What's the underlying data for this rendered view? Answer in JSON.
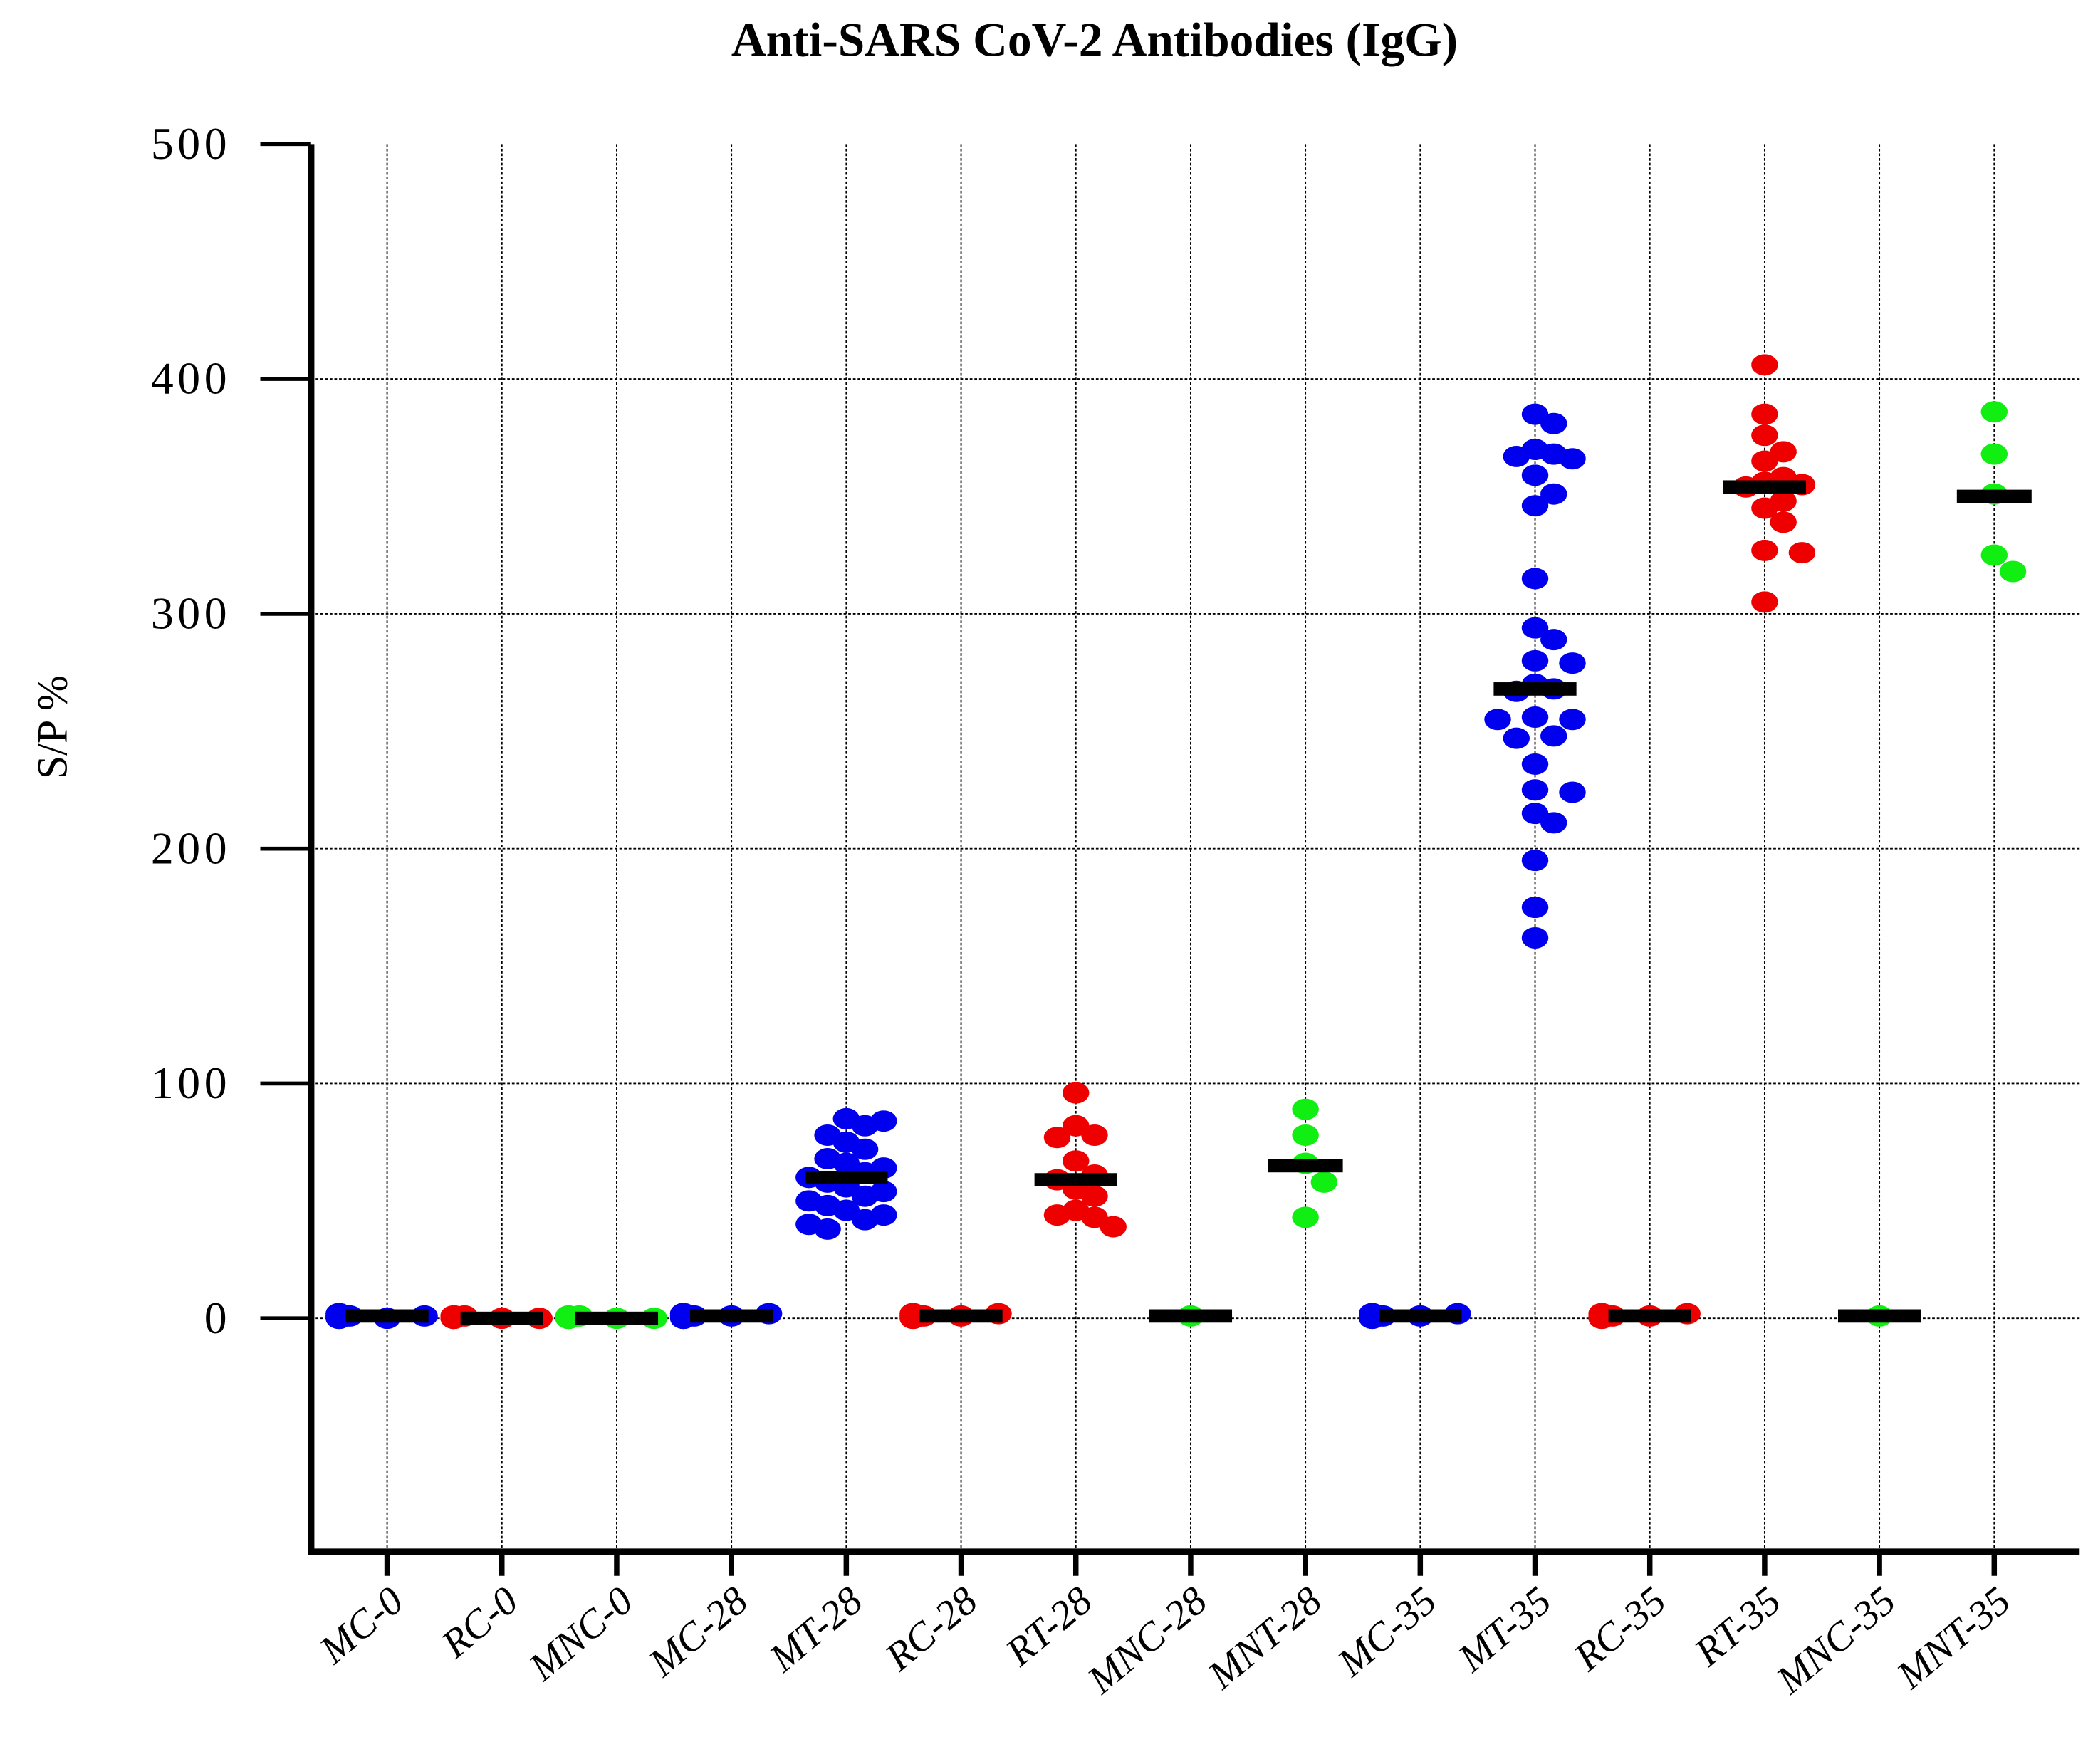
{
  "chart_data": {
    "type": "scatter",
    "title": "Anti-SARS CoV-2 Antibodies (IgG)",
    "xlabel": "",
    "ylabel": "S/P %",
    "ylim": [
      -100,
      500
    ],
    "yticks": [
      0,
      100,
      200,
      300,
      400,
      500
    ],
    "grid": true,
    "legend": null,
    "categories": [
      "MC-0",
      "RC-0",
      "MNC-0",
      "MC-28",
      "MT-28",
      "RC-28",
      "RT-28",
      "MNC-28",
      "MNT-28",
      "MC-35",
      "MT-35",
      "RC-35",
      "RT-35",
      "MNC-35",
      "MNT-35"
    ],
    "colors": {
      "M": "#0000ee",
      "R": "#ee0000",
      "MN": "#11ee11",
      "median": "#000000"
    },
    "series": [
      {
        "name": "MC-0",
        "color": "#0000ee",
        "median": 1,
        "values": [
          0,
          1,
          1,
          2,
          2,
          1,
          0,
          1,
          2,
          1,
          1,
          2,
          0,
          1,
          2,
          1,
          1,
          0,
          2,
          1
        ]
      },
      {
        "name": "RC-0",
        "color": "#ee0000",
        "median": 0,
        "values": [
          0,
          0,
          1,
          1,
          0,
          0,
          1,
          0,
          1,
          0,
          0,
          1
        ]
      },
      {
        "name": "MNC-0",
        "color": "#11ee11",
        "median": 0,
        "values": [
          0,
          0,
          1,
          0,
          0,
          1,
          0,
          0
        ]
      },
      {
        "name": "MC-28",
        "color": "#0000ee",
        "median": 1,
        "values": [
          1,
          2,
          1,
          0,
          2,
          1,
          1,
          2,
          0,
          1,
          2,
          1,
          1,
          0,
          2,
          1,
          1,
          2,
          1,
          0
        ]
      },
      {
        "name": "MT-28",
        "color": "#0000ee",
        "median": 60,
        "values": [
          85,
          84,
          82,
          78,
          75,
          72,
          68,
          66,
          64,
          62,
          60,
          58,
          56,
          54,
          52,
          50,
          48,
          46,
          44,
          42,
          40,
          38
        ]
      },
      {
        "name": "RC-28",
        "color": "#ee0000",
        "median": 1,
        "values": [
          1,
          2,
          1,
          0,
          2,
          1,
          1,
          2,
          0,
          1,
          2,
          1
        ]
      },
      {
        "name": "RT-28",
        "color": "#ee0000",
        "median": 59,
        "values": [
          96,
          82,
          78,
          77,
          67,
          61,
          59,
          55,
          52,
          46,
          44,
          43,
          39
        ]
      },
      {
        "name": "MNC-28",
        "color": "#11ee11",
        "median": 1,
        "values": [
          1
        ]
      },
      {
        "name": "MNT-28",
        "color": "#11ee11",
        "median": 65,
        "values": [
          89,
          78,
          66,
          58,
          43
        ]
      },
      {
        "name": "MC-35",
        "color": "#0000ee",
        "median": 1,
        "values": [
          1,
          2,
          1,
          0,
          2,
          1,
          1,
          2,
          0,
          1,
          2,
          1
        ]
      },
      {
        "name": "MT-35",
        "color": "#0000ee",
        "median": 268,
        "values": [
          385,
          381,
          370,
          368,
          367,
          366,
          359,
          351,
          346,
          315,
          294,
          289,
          280,
          279,
          270,
          268,
          267,
          256,
          255,
          255,
          248,
          247,
          236,
          225,
          224,
          215,
          211,
          195,
          175,
          162
        ]
      },
      {
        "name": "RC-35",
        "color": "#ee0000",
        "median": 1,
        "values": [
          1,
          2,
          1,
          0,
          2,
          1,
          1,
          2,
          0,
          1
        ]
      },
      {
        "name": "RT-35",
        "color": "#ee0000",
        "median": 354,
        "values": [
          406,
          385,
          376,
          369,
          365,
          358,
          356,
          355,
          354,
          348,
          345,
          339,
          327,
          326,
          305
        ]
      },
      {
        "name": "MNC-35",
        "color": "#11ee11",
        "median": 1,
        "values": [
          1
        ]
      },
      {
        "name": "MNT-35",
        "color": "#11ee11",
        "median": 350,
        "values": [
          386,
          368,
          351,
          325,
          318
        ]
      }
    ]
  }
}
